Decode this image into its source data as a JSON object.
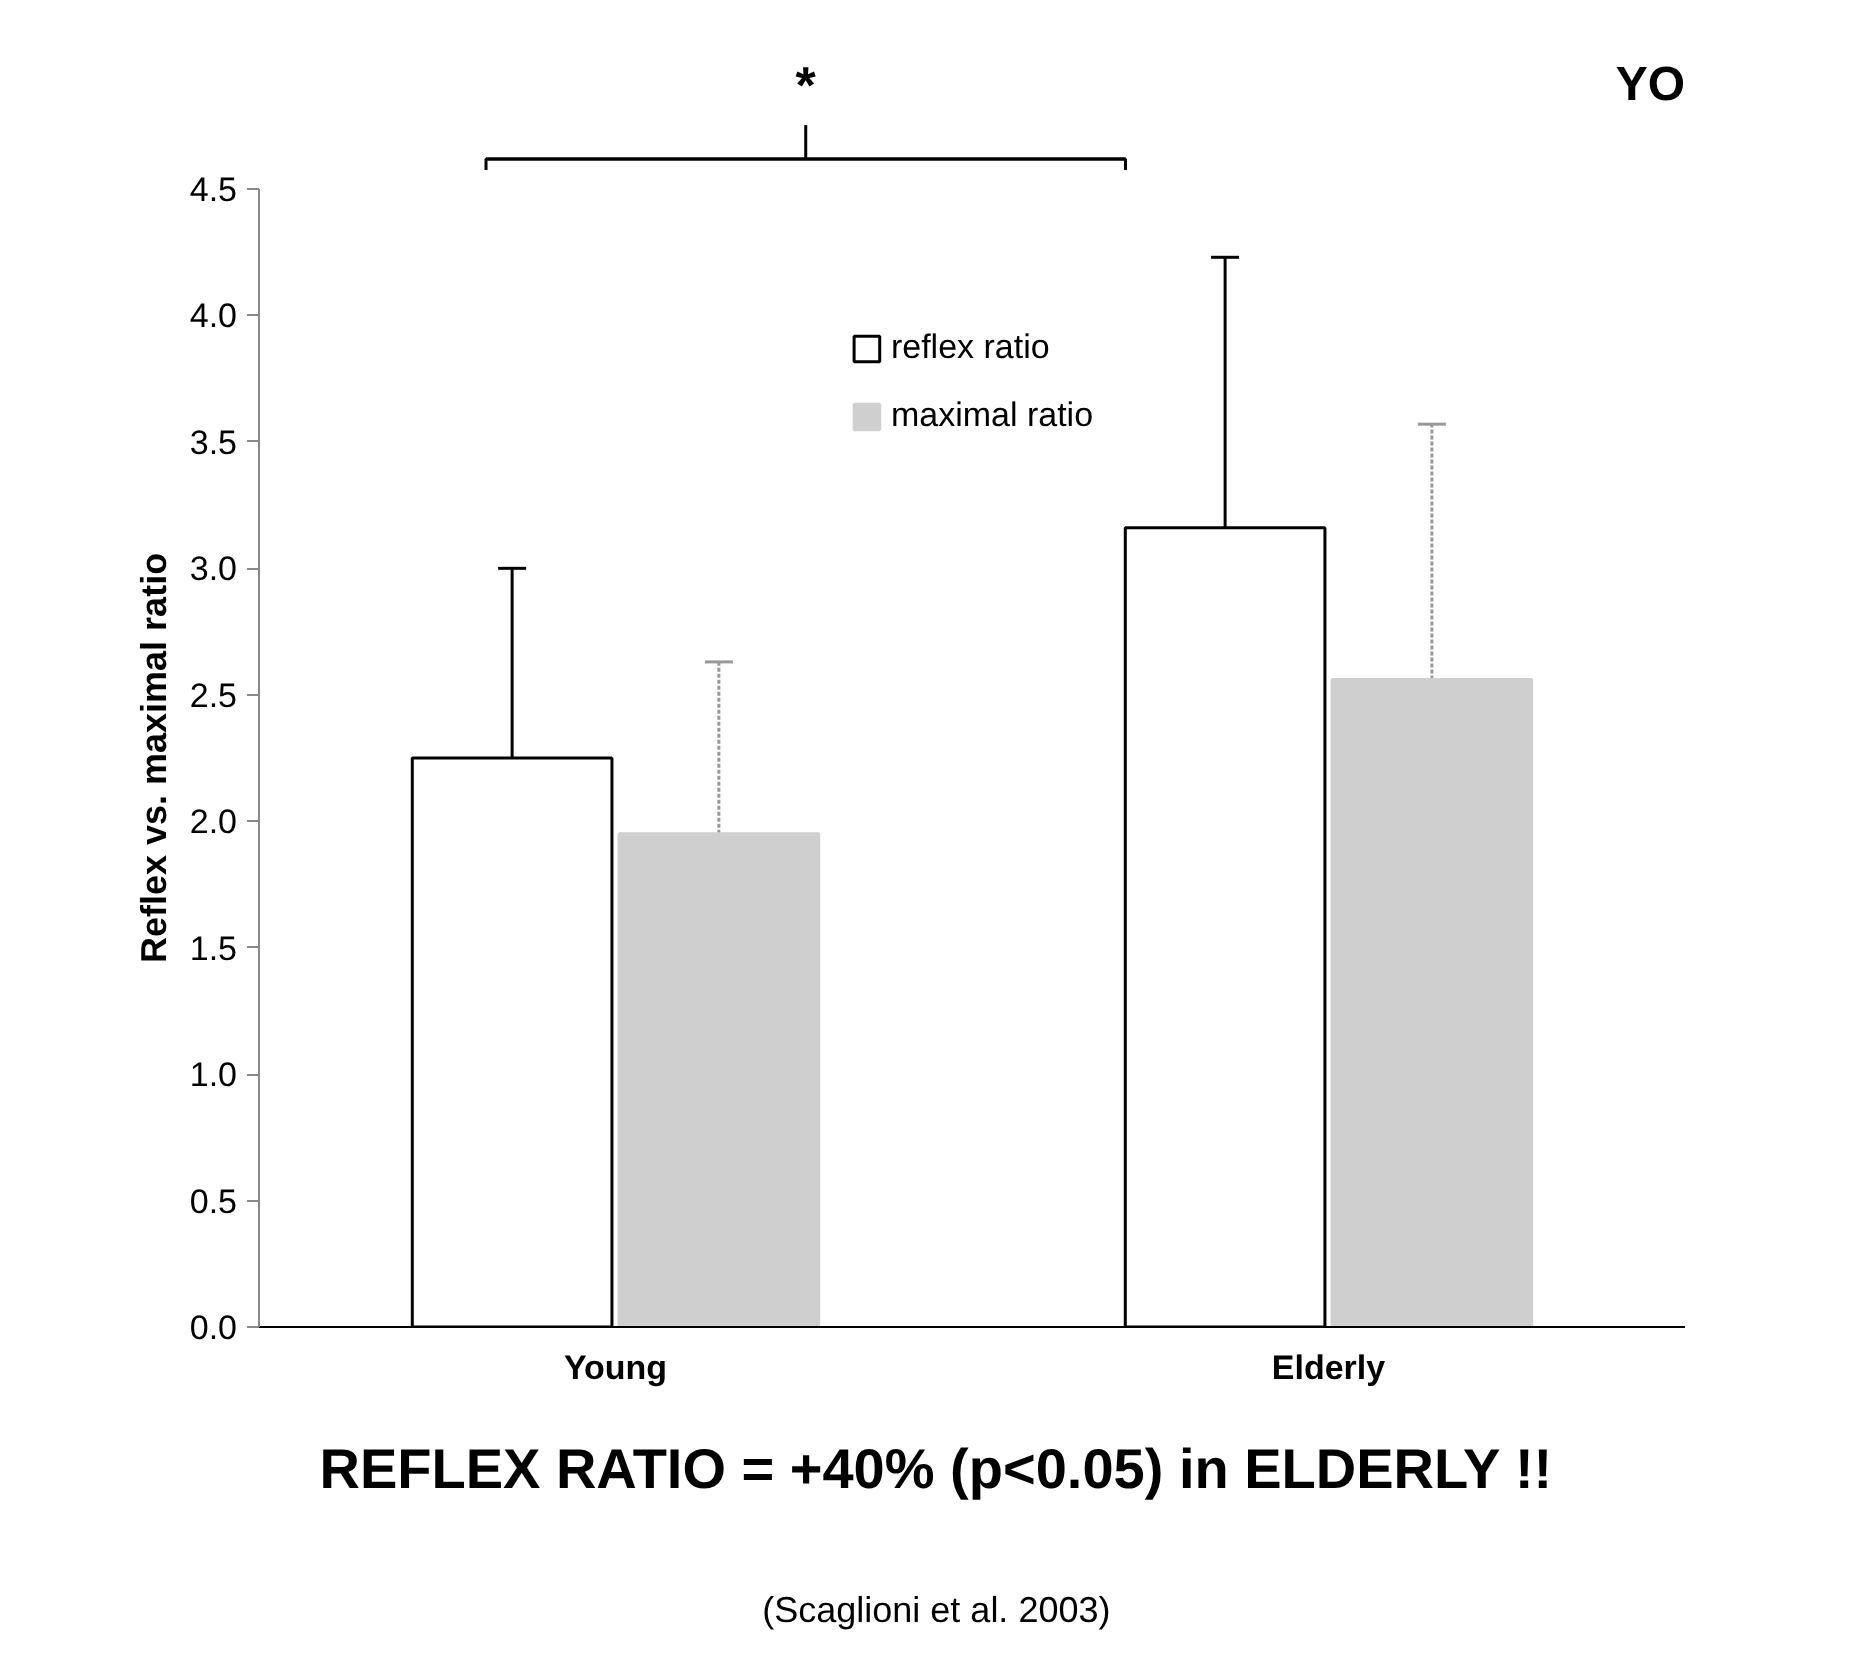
{
  "chart_data": {
    "type": "bar",
    "ylabel": "Reflex vs. maximal ratio",
    "categories": [
      "Young",
      "Elderly"
    ],
    "series": [
      {
        "name": "reflex ratio",
        "color": "#ffffff",
        "values": [
          2.25,
          3.16
        ],
        "errors": [
          [
            2.25,
            3.0
          ],
          [
            3.16,
            4.23
          ]
        ]
      },
      {
        "name": "maximal ratio",
        "color": "#cfcfcf",
        "values": [
          1.95,
          2.56
        ],
        "errors": [
          [
            1.95,
            2.63
          ],
          [
            2.56,
            3.57
          ]
        ]
      }
    ],
    "ylim": [
      0,
      4.5
    ],
    "yticks": [
      {
        "value": 0,
        "label": "0.0"
      },
      {
        "value": 0.5,
        "label": "0.5"
      },
      {
        "value": 1,
        "label": "1.0"
      },
      {
        "value": 1.5,
        "label": "1.5"
      },
      {
        "value": 2,
        "label": "2.0"
      },
      {
        "value": 2.5,
        "label": "2.5"
      },
      {
        "value": 3,
        "label": "3.0"
      },
      {
        "value": 3.5,
        "label": "3.5"
      },
      {
        "value": 4,
        "label": "4.0"
      },
      {
        "value": 4.5,
        "label": "4.5"
      }
    ],
    "grid": false,
    "legend": "top",
    "annotations": [
      "*",
      "YO",
      "REFLEX RATIO = +40% (p<0.05) in ELDERLY !!",
      "(Scaglioni et al. 2003)"
    ]
  }
}
